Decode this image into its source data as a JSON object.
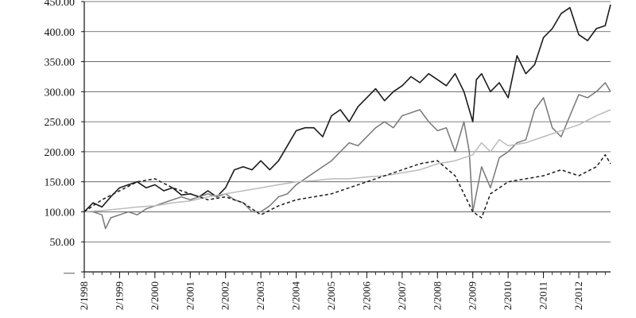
{
  "chart_data": {
    "type": "line",
    "title": "",
    "xlabel": "",
    "ylabel": "",
    "ylim": [
      0,
      450
    ],
    "xlim": [
      1998.0,
      2012.9
    ],
    "grid": "horizontal",
    "y_ticks": [
      0,
      50,
      100,
      150,
      200,
      250,
      300,
      350,
      400,
      450
    ],
    "y_tick_labels": [
      "—",
      "50.00",
      "100.00",
      "150.00",
      "200.00",
      "250.00",
      "300.00",
      "350.00",
      "400.00",
      "450.00"
    ],
    "x_ticks": [
      1998,
      1999,
      2000,
      2001,
      2002,
      2003,
      2004,
      2005,
      2006,
      2007,
      2008,
      2009,
      2010,
      2011,
      2012
    ],
    "x_tick_labels": [
      "2/1998",
      "2/1999",
      "2/2000",
      "2/2001",
      "2/2002",
      "2/2003",
      "2/2004",
      "2/2005",
      "2/2006",
      "2/2007",
      "2/2008",
      "2/2009",
      "2/2010",
      "2/2011",
      "2/2012"
    ],
    "series": [
      {
        "color": "#1a1a1a",
        "dash": "solid",
        "x": [
          1998.0,
          1998.25,
          1998.5,
          1998.75,
          1999.0,
          1999.25,
          1999.5,
          1999.75,
          2000.0,
          2000.25,
          2000.5,
          2000.75,
          2001.0,
          2001.25,
          2001.5,
          2001.75,
          2002.0,
          2002.25,
          2002.5,
          2002.75,
          2003.0,
          2003.25,
          2003.5,
          2003.75,
          2004.0,
          2004.25,
          2004.5,
          2004.75,
          2005.0,
          2005.25,
          2005.5,
          2005.75,
          2006.0,
          2006.25,
          2006.5,
          2006.75,
          2007.0,
          2007.25,
          2007.5,
          2007.75,
          2008.0,
          2008.25,
          2008.5,
          2008.75,
          2009.0,
          2009.1,
          2009.25,
          2009.5,
          2009.75,
          2010.0,
          2010.25,
          2010.5,
          2010.75,
          2011.0,
          2011.25,
          2011.5,
          2011.75,
          2012.0,
          2012.25,
          2012.5,
          2012.75,
          2012.9
        ],
        "y": [
          100,
          115,
          108,
          125,
          140,
          145,
          150,
          140,
          145,
          135,
          140,
          128,
          130,
          125,
          135,
          125,
          140,
          170,
          175,
          170,
          185,
          170,
          185,
          210,
          235,
          240,
          240,
          225,
          260,
          270,
          250,
          275,
          290,
          305,
          285,
          300,
          310,
          325,
          315,
          330,
          320,
          310,
          330,
          300,
          250,
          320,
          330,
          300,
          315,
          290,
          360,
          330,
          345,
          390,
          405,
          430,
          440,
          395,
          385,
          405,
          410,
          445
        ]
      },
      {
        "color": "#777777",
        "dash": "solid",
        "x": [
          1998.0,
          1998.25,
          1998.5,
          1998.6,
          1998.75,
          1999.0,
          1999.25,
          1999.5,
          1999.75,
          2000.0,
          2000.25,
          2000.5,
          2000.75,
          2001.0,
          2001.25,
          2001.5,
          2001.75,
          2002.0,
          2002.25,
          2002.5,
          2002.75,
          2003.0,
          2003.25,
          2003.5,
          2003.75,
          2004.0,
          2004.25,
          2004.5,
          2004.75,
          2005.0,
          2005.25,
          2005.5,
          2005.75,
          2006.0,
          2006.25,
          2006.5,
          2006.75,
          2007.0,
          2007.25,
          2007.5,
          2007.75,
          2008.0,
          2008.25,
          2008.5,
          2008.75,
          2008.9,
          2009.0,
          2009.25,
          2009.5,
          2009.75,
          2010.0,
          2010.25,
          2010.5,
          2010.75,
          2011.0,
          2011.25,
          2011.5,
          2011.75,
          2012.0,
          2012.25,
          2012.5,
          2012.75,
          2012.9
        ],
        "y": [
          100,
          100,
          95,
          72,
          90,
          95,
          100,
          95,
          105,
          110,
          115,
          120,
          125,
          120,
          125,
          130,
          125,
          130,
          120,
          115,
          100,
          100,
          110,
          125,
          130,
          145,
          155,
          165,
          175,
          185,
          200,
          215,
          210,
          225,
          240,
          250,
          240,
          260,
          265,
          270,
          250,
          235,
          240,
          200,
          250,
          200,
          100,
          175,
          140,
          190,
          200,
          215,
          220,
          270,
          290,
          240,
          225,
          260,
          295,
          290,
          300,
          315,
          300
        ]
      },
      {
        "color": "#bbbbbb",
        "dash": "solid",
        "x": [
          1998.0,
          1998.5,
          1999.0,
          1999.5,
          2000.0,
          2000.5,
          2001.0,
          2001.5,
          2002.0,
          2002.5,
          2003.0,
          2003.5,
          2004.0,
          2004.5,
          2005.0,
          2005.5,
          2006.0,
          2006.5,
          2007.0,
          2007.5,
          2008.0,
          2008.5,
          2009.0,
          2009.25,
          2009.5,
          2009.75,
          2010.0,
          2010.5,
          2011.0,
          2011.5,
          2012.0,
          2012.5,
          2012.9
        ],
        "y": [
          100,
          102,
          105,
          108,
          110,
          115,
          118,
          125,
          130,
          135,
          140,
          145,
          150,
          152,
          155,
          155,
          158,
          160,
          165,
          170,
          180,
          185,
          195,
          215,
          200,
          220,
          210,
          215,
          225,
          235,
          245,
          260,
          270
        ]
      },
      {
        "color": "#1a1a1a",
        "dash": "dashed",
        "x": [
          1998.0,
          1998.5,
          1999.0,
          1999.5,
          2000.0,
          2000.5,
          2001.0,
          2001.5,
          2002.0,
          2002.5,
          2003.0,
          2003.5,
          2004.0,
          2004.5,
          2005.0,
          2005.5,
          2006.0,
          2006.5,
          2007.0,
          2007.5,
          2008.0,
          2008.5,
          2008.75,
          2009.0,
          2009.25,
          2009.5,
          2010.0,
          2010.5,
          2011.0,
          2011.5,
          2012.0,
          2012.5,
          2012.75,
          2012.9
        ],
        "y": [
          100,
          120,
          135,
          150,
          155,
          140,
          130,
          120,
          125,
          115,
          95,
          110,
          120,
          125,
          130,
          140,
          150,
          160,
          170,
          180,
          185,
          160,
          130,
          100,
          90,
          130,
          150,
          155,
          160,
          170,
          160,
          175,
          195,
          180
        ]
      }
    ]
  }
}
